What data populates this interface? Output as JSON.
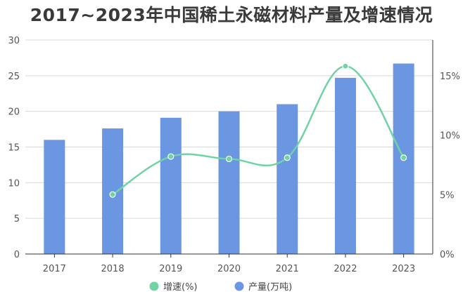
{
  "chart_data": {
    "type": "bar",
    "title": "2017~2023年中国稀土永磁材料产量及增速情况",
    "categories": [
      "2017",
      "2018",
      "2019",
      "2020",
      "2021",
      "2022",
      "2023"
    ],
    "series": [
      {
        "name": "产量(万吨)",
        "type": "bar",
        "axis": "left",
        "color": "#6a96e2",
        "values": [
          16.0,
          17.6,
          19.1,
          20.0,
          21.0,
          24.7,
          26.7
        ]
      },
      {
        "name": "增速(%)",
        "type": "line",
        "axis": "right",
        "color": "#6fd3a4",
        "values": [
          null,
          5.0,
          8.2,
          8.0,
          8.1,
          15.8,
          8.1
        ]
      }
    ],
    "ylim_left": [
      0,
      30
    ],
    "yticks_left": [
      "0",
      "5",
      "10",
      "15",
      "20",
      "25",
      "30"
    ],
    "ylim_right": [
      0,
      18
    ],
    "yticks_right": [
      "0%",
      "5%",
      "10%",
      "15%"
    ],
    "grid": true,
    "legend_position": "bottom"
  }
}
